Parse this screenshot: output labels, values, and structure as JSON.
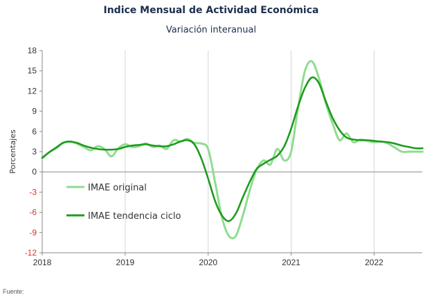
{
  "chart_data": {
    "type": "line",
    "title": "Indice Mensual de  Actividad Económica",
    "subtitle": "Variación interanual",
    "xlabel": "",
    "ylabel": "Porcentajes",
    "xlim": [
      2018,
      2022.58
    ],
    "ylim": [
      -12,
      18
    ],
    "y_ticks": [
      18,
      15,
      12,
      9,
      6,
      3,
      0,
      -3,
      -6,
      -9,
      -12
    ],
    "x_ticks": [
      2018,
      2019,
      2020,
      2021,
      2022
    ],
    "x_tick_labels": [
      "2018",
      "2019",
      "2020",
      "2021",
      "2022"
    ],
    "grid": "vertical",
    "legend_position": "bottom-left",
    "colors": {
      "original": "#8fdc8f",
      "trend": "#1e9b1e",
      "negative_tick": "#e03030",
      "text": "#1d2f4d"
    },
    "series": [
      {
        "name": "IMAE original",
        "style": "light-thick",
        "x": [
          2018.0,
          2018.083,
          2018.167,
          2018.25,
          2018.333,
          2018.417,
          2018.5,
          2018.583,
          2018.667,
          2018.75,
          2018.833,
          2018.917,
          2019.0,
          2019.083,
          2019.167,
          2019.25,
          2019.333,
          2019.417,
          2019.5,
          2019.583,
          2019.667,
          2019.75,
          2019.833,
          2019.917,
          2020.0,
          2020.083,
          2020.167,
          2020.25,
          2020.333,
          2020.417,
          2020.5,
          2020.583,
          2020.667,
          2020.75,
          2020.833,
          2020.917,
          2021.0,
          2021.083,
          2021.167,
          2021.25,
          2021.333,
          2021.417,
          2021.5,
          2021.583,
          2021.667,
          2021.75,
          2021.833,
          2021.917,
          2022.0,
          2022.083,
          2022.167,
          2022.25,
          2022.333,
          2022.417,
          2022.5,
          2022.583
        ],
        "values": [
          2.0,
          2.9,
          3.5,
          4.3,
          4.5,
          4.2,
          3.7,
          3.2,
          3.8,
          3.4,
          2.3,
          3.5,
          4.1,
          3.7,
          3.8,
          4.2,
          3.7,
          3.9,
          3.4,
          4.7,
          4.5,
          4.9,
          4.3,
          4.2,
          3.4,
          -1.5,
          -6.8,
          -9.5,
          -9.5,
          -6.5,
          -2.8,
          0.3,
          1.7,
          1.1,
          3.4,
          1.7,
          3.0,
          9.5,
          15.0,
          16.4,
          14.0,
          10.2,
          7.2,
          4.7,
          5.7,
          4.4,
          4.8,
          4.6,
          4.4,
          4.5,
          4.2,
          3.6,
          3.0,
          3.0,
          3.0,
          3.0
        ]
      },
      {
        "name": "IMAE tendencia ciclo",
        "style": "dark",
        "x": [
          2018.0,
          2018.083,
          2018.167,
          2018.25,
          2018.333,
          2018.417,
          2018.5,
          2018.583,
          2018.667,
          2018.75,
          2018.833,
          2018.917,
          2019.0,
          2019.083,
          2019.167,
          2019.25,
          2019.333,
          2019.417,
          2019.5,
          2019.583,
          2019.667,
          2019.75,
          2019.833,
          2019.917,
          2020.0,
          2020.083,
          2020.167,
          2020.25,
          2020.333,
          2020.417,
          2020.5,
          2020.583,
          2020.667,
          2020.75,
          2020.833,
          2020.917,
          2021.0,
          2021.083,
          2021.167,
          2021.25,
          2021.333,
          2021.417,
          2021.5,
          2021.583,
          2021.667,
          2021.75,
          2021.833,
          2021.917,
          2022.0,
          2022.083,
          2022.167,
          2022.25,
          2022.333,
          2022.417,
          2022.5,
          2022.583
        ],
        "values": [
          2.1,
          2.9,
          3.6,
          4.3,
          4.5,
          4.3,
          3.9,
          3.6,
          3.4,
          3.3,
          3.3,
          3.4,
          3.7,
          3.9,
          4.0,
          4.1,
          3.9,
          3.8,
          3.8,
          4.1,
          4.5,
          4.7,
          4.1,
          2.0,
          -1.0,
          -4.3,
          -6.5,
          -7.3,
          -6.2,
          -3.8,
          -1.5,
          0.4,
          1.2,
          1.8,
          2.4,
          3.8,
          6.4,
          9.7,
          12.5,
          14.0,
          13.2,
          10.5,
          8.0,
          6.2,
          5.1,
          4.8,
          4.7,
          4.7,
          4.6,
          4.5,
          4.4,
          4.2,
          3.9,
          3.7,
          3.5,
          3.5
        ]
      }
    ],
    "legend": [
      "IMAE original",
      "IMAE tendencia ciclo"
    ]
  },
  "footer": {
    "note": "Fuente:"
  }
}
